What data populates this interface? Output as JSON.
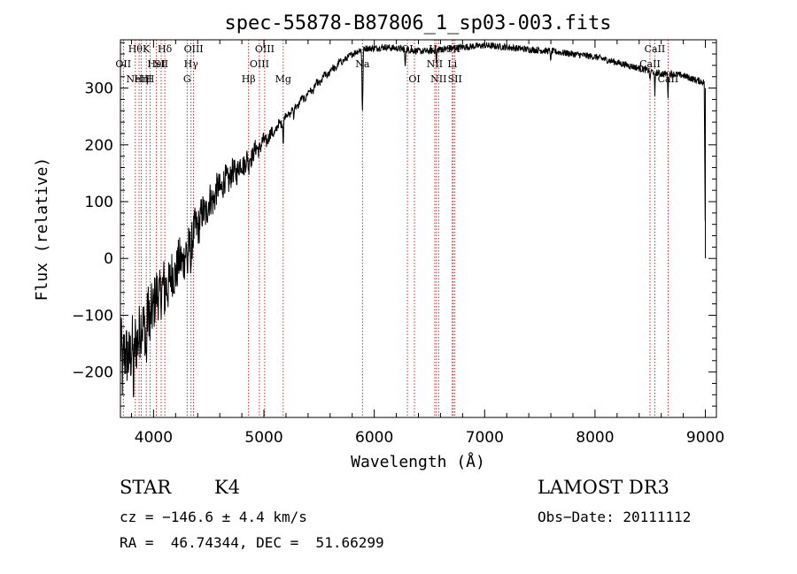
{
  "chart_data": {
    "type": "line",
    "title": "spec-55878-B87806_1_sp03-003.fits",
    "xlabel": "Wavelength (Å)",
    "ylabel": "Flux (relative)",
    "xlim": [
      3700,
      9100
    ],
    "ylim": [
      -280,
      385
    ],
    "xticks": [
      4000,
      5000,
      6000,
      7000,
      8000,
      9000
    ],
    "xtick_labels": [
      "4000",
      "5000",
      "6000",
      "7000",
      "8000",
      "9000"
    ],
    "yticks": [
      -200,
      -100,
      0,
      100,
      200,
      300
    ],
    "ytick_labels": [
      "−200",
      "−100",
      "0",
      "100",
      "200",
      "300"
    ],
    "continuum": {
      "x": [
        3700,
        3750,
        3800,
        3850,
        3900,
        3950,
        4000,
        4050,
        4100,
        4150,
        4200,
        4250,
        4300,
        4350,
        4400,
        4500,
        4600,
        4700,
        4800,
        4900,
        5000,
        5100,
        5200,
        5300,
        5400,
        5500,
        5600,
        5700,
        5800,
        5900,
        6000,
        6100,
        6200,
        6300,
        6400,
        6500,
        6600,
        6700,
        6800,
        7000,
        7200,
        7400,
        7600,
        7800,
        8000,
        8200,
        8400,
        8600,
        8700,
        8800,
        8900,
        8990,
        9000
      ],
      "y": [
        -150,
        -180,
        -160,
        -140,
        -120,
        -100,
        -80,
        -60,
        -50,
        -40,
        -20,
        -5,
        10,
        35,
        60,
        95,
        125,
        145,
        165,
        185,
        205,
        225,
        250,
        270,
        290,
        310,
        330,
        345,
        360,
        370,
        370,
        372,
        370,
        368,
        365,
        365,
        368,
        370,
        372,
        375,
        372,
        368,
        365,
        360,
        355,
        345,
        335,
        325,
        325,
        322,
        315,
        310,
        0
      ]
    },
    "absorption_lines": [
      {
        "x": 3720,
        "depth": 40
      },
      {
        "x": 3820,
        "depth": 90
      },
      {
        "x": 3934,
        "depth": 70
      },
      {
        "x": 3969,
        "depth": 60
      },
      {
        "x": 4102,
        "depth": 40
      },
      {
        "x": 4308,
        "depth": 45
      },
      {
        "x": 4340,
        "depth": 35
      },
      {
        "x": 4861,
        "depth": 30
      },
      {
        "x": 5175,
        "depth": 40
      },
      {
        "x": 5270,
        "depth": 25
      },
      {
        "x": 5893,
        "depth": 110
      },
      {
        "x": 6280,
        "depth": 35
      },
      {
        "x": 6563,
        "depth": 25
      },
      {
        "x": 7600,
        "depth": 20
      },
      {
        "x": 8498,
        "depth": 20
      },
      {
        "x": 8542,
        "depth": 45
      },
      {
        "x": 8662,
        "depth": 40
      }
    ],
    "noise": {
      "blue_amplitude": 60,
      "red_amplitude": 6,
      "ripple_amplitude": 10
    },
    "reference_lines": [
      {
        "x": 3835,
        "label": "Hθ",
        "row": 1
      },
      {
        "x": 3726,
        "label": "OII",
        "row": 2
      },
      {
        "x": 3869,
        "label": "NeIII",
        "row": 3
      },
      {
        "x": 3889,
        "label": "Hη",
        "row": 3
      },
      {
        "x": 3934,
        "label": "K",
        "row": 1
      },
      {
        "x": 3969,
        "label": "H",
        "row": 3
      },
      {
        "x": 4026,
        "label": "HeI",
        "row": 2
      },
      {
        "x": 4069,
        "label": "SII",
        "row": 2
      },
      {
        "x": 4102,
        "label": "Hδ",
        "row": 1
      },
      {
        "x": 4304,
        "label": "G",
        "row": 3
      },
      {
        "x": 4340,
        "label": "Hγ",
        "row": 2
      },
      {
        "x": 4363,
        "label": "OIII",
        "row": 1
      },
      {
        "x": 4861,
        "label": "Hβ",
        "row": 3
      },
      {
        "x": 4959,
        "label": "OIII",
        "row": 2
      },
      {
        "x": 5007,
        "label": "OIII",
        "row": 1
      },
      {
        "x": 5175,
        "label": "Mg",
        "row": 3
      },
      {
        "x": 5893,
        "label": "Na",
        "row": 2
      },
      {
        "x": 6300,
        "label": "OI",
        "row": 1
      },
      {
        "x": 6364,
        "label": "OI",
        "row": 3
      },
      {
        "x": 6548,
        "label": "NII",
        "row": 2
      },
      {
        "x": 6563,
        "label": "Hα",
        "row": 1
      },
      {
        "x": 6583,
        "label": "NII",
        "row": 3
      },
      {
        "x": 6707,
        "label": "Li",
        "row": 2
      },
      {
        "x": 6716,
        "label": "SII",
        "row": 1
      },
      {
        "x": 6731,
        "label": "SII",
        "row": 3
      },
      {
        "x": 8498,
        "label": "CaII",
        "row": 2
      },
      {
        "x": 8542,
        "label": "CaII",
        "row": 1
      },
      {
        "x": 8662,
        "label": "CaII",
        "row": 3
      }
    ]
  },
  "footer": {
    "object_class": "STAR",
    "subclass": "K4",
    "survey": "LAMOST DR3",
    "redshift_text": "cz = −146.6 ± 4.4 km/s",
    "obs_date_text": "Obs−Date: 20111112",
    "coords_text": "RA =  46.74344, DEC =  51.66299"
  },
  "colors": {
    "spectrum": "#000000",
    "reference_line": "#b40000",
    "axis": "#000000"
  }
}
